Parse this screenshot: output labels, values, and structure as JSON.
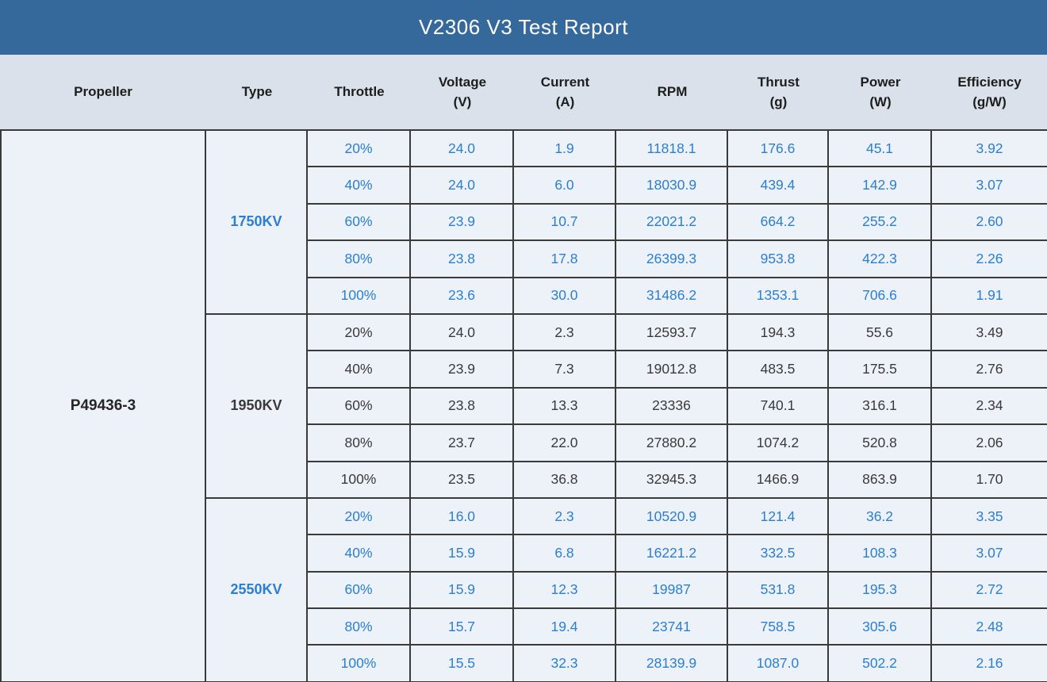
{
  "title": "V2306 V3 Test Report",
  "colors": {
    "banner_bg": "#35689B",
    "banner_text": "#FFFFFF",
    "header_bg": "#DAE1EA",
    "cell_bg": "#EDF1F8",
    "grid_line": "#3A3A3A",
    "blue_text": "#2B7FD0",
    "dark_text": "#3A3A3A"
  },
  "columns": [
    {
      "label": "Propeller",
      "sub": ""
    },
    {
      "label": "Type",
      "sub": ""
    },
    {
      "label": "Throttle",
      "sub": ""
    },
    {
      "label": "Voltage",
      "sub": "(V)"
    },
    {
      "label": "Current",
      "sub": "(A)"
    },
    {
      "label": "RPM",
      "sub": ""
    },
    {
      "label": "Thrust",
      "sub": "(g)"
    },
    {
      "label": "Power",
      "sub": "(W)"
    },
    {
      "label": "Efficiency",
      "sub": "(g/W)"
    }
  ],
  "propeller": "P49436-3",
  "blocks": [
    {
      "type": "1750KV",
      "rows": [
        {
          "throttle": "20%",
          "voltage": "24.0",
          "current": "1.9",
          "rpm": "11818.1",
          "thrust": "176.6",
          "power": "45.1",
          "efficiency": "3.92"
        },
        {
          "throttle": "40%",
          "voltage": "24.0",
          "current": "6.0",
          "rpm": "18030.9",
          "thrust": "439.4",
          "power": "142.9",
          "efficiency": "3.07"
        },
        {
          "throttle": "60%",
          "voltage": "23.9",
          "current": "10.7",
          "rpm": "22021.2",
          "thrust": "664.2",
          "power": "255.2",
          "efficiency": "2.60"
        },
        {
          "throttle": "80%",
          "voltage": "23.8",
          "current": "17.8",
          "rpm": "26399.3",
          "thrust": "953.8",
          "power": "422.3",
          "efficiency": "2.26"
        },
        {
          "throttle": "100%",
          "voltage": "23.6",
          "current": "30.0",
          "rpm": "31486.2",
          "thrust": "1353.1",
          "power": "706.6",
          "efficiency": "1.91"
        }
      ]
    },
    {
      "type": "1950KV",
      "rows": [
        {
          "throttle": "20%",
          "voltage": "24.0",
          "current": "2.3",
          "rpm": "12593.7",
          "thrust": "194.3",
          "power": "55.6",
          "efficiency": "3.49"
        },
        {
          "throttle": "40%",
          "voltage": "23.9",
          "current": "7.3",
          "rpm": "19012.8",
          "thrust": "483.5",
          "power": "175.5",
          "efficiency": "2.76"
        },
        {
          "throttle": "60%",
          "voltage": "23.8",
          "current": "13.3",
          "rpm": "23336",
          "thrust": "740.1",
          "power": "316.1",
          "efficiency": "2.34"
        },
        {
          "throttle": "80%",
          "voltage": "23.7",
          "current": "22.0",
          "rpm": "27880.2",
          "thrust": "1074.2",
          "power": "520.8",
          "efficiency": "2.06"
        },
        {
          "throttle": "100%",
          "voltage": "23.5",
          "current": "36.8",
          "rpm": "32945.3",
          "thrust": "1466.9",
          "power": "863.9",
          "efficiency": "1.70"
        }
      ]
    },
    {
      "type": "2550KV",
      "rows": [
        {
          "throttle": "20%",
          "voltage": "16.0",
          "current": "2.3",
          "rpm": "10520.9",
          "thrust": "121.4",
          "power": "36.2",
          "efficiency": "3.35"
        },
        {
          "throttle": "40%",
          "voltage": "15.9",
          "current": "6.8",
          "rpm": "16221.2",
          "thrust": "332.5",
          "power": "108.3",
          "efficiency": "3.07"
        },
        {
          "throttle": "60%",
          "voltage": "15.9",
          "current": "12.3",
          "rpm": "19987",
          "thrust": "531.8",
          "power": "195.3",
          "efficiency": "2.72"
        },
        {
          "throttle": "80%",
          "voltage": "15.7",
          "current": "19.4",
          "rpm": "23741",
          "thrust": "758.5",
          "power": "305.6",
          "efficiency": "2.48"
        },
        {
          "throttle": "100%",
          "voltage": "15.5",
          "current": "32.3",
          "rpm": "28139.9",
          "thrust": "1087.0",
          "power": "502.2",
          "efficiency": "2.16"
        }
      ]
    }
  ]
}
